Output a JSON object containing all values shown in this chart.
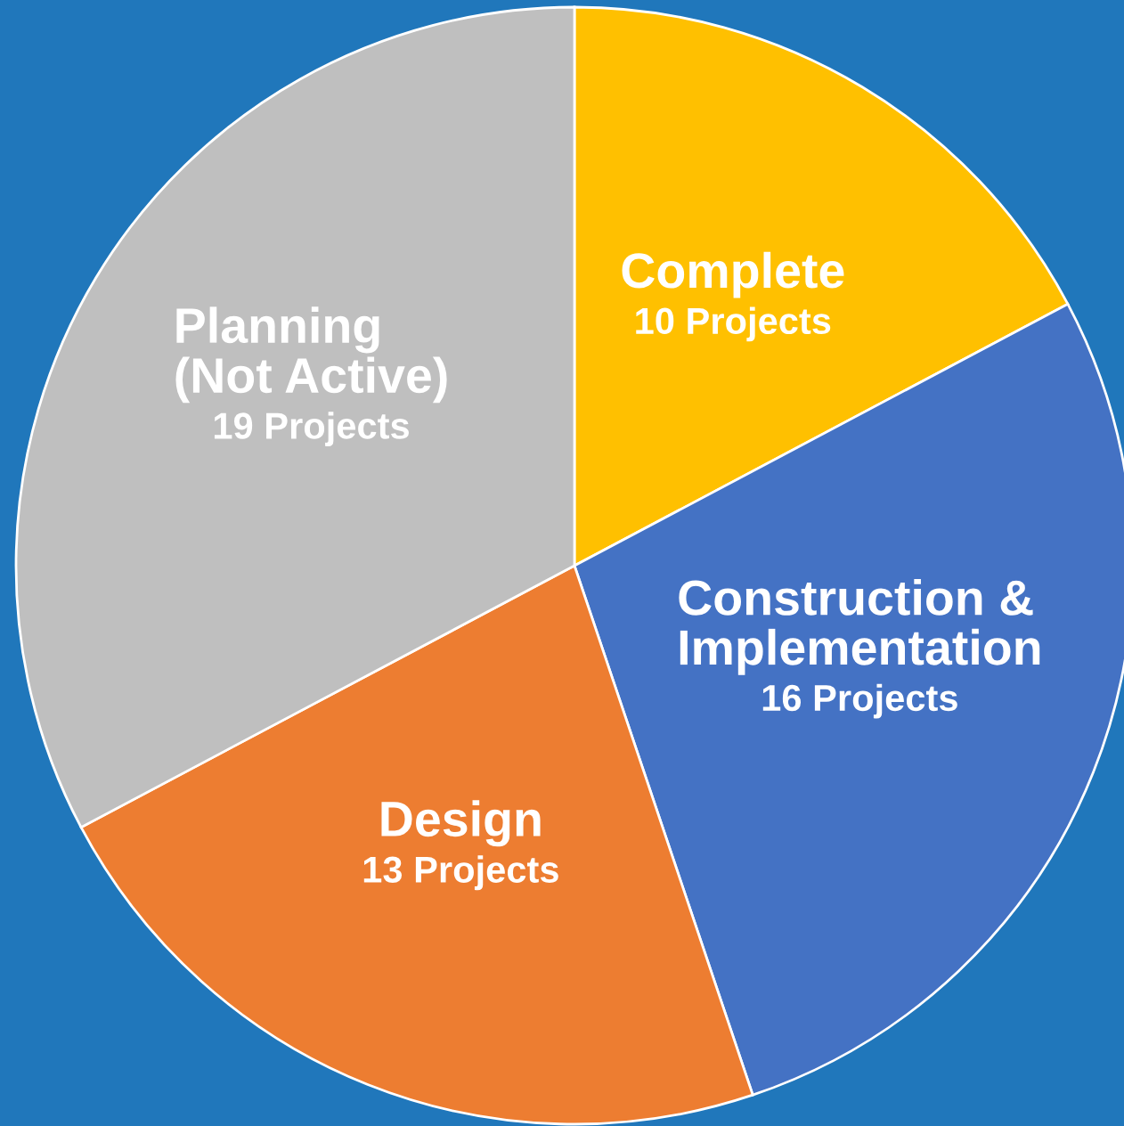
{
  "chart_data": {
    "type": "pie",
    "categories": [
      "Complete",
      "Construction &\nImplementation",
      "Design",
      "Planning\n(Not Active)"
    ],
    "values": [
      10,
      16,
      13,
      19
    ],
    "value_labels": [
      "10 Projects",
      "16 Projects",
      "13 Projects",
      "19 Projects"
    ],
    "colors": [
      "#ffc000",
      "#4472c4",
      "#ed7d31",
      "#bfbfbf"
    ],
    "legend": false
  }
}
